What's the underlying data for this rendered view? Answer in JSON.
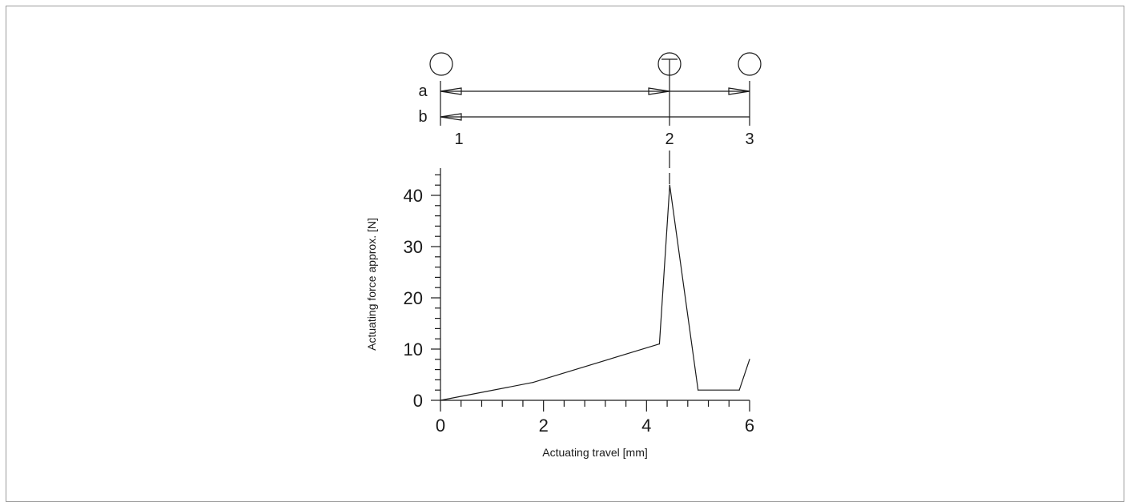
{
  "chart_data": {
    "type": "line",
    "xlabel": "Actuating travel [mm]",
    "ylabel": "Actuating force approx. [N]",
    "xlim": [
      0,
      6
    ],
    "ylim": [
      0,
      45
    ],
    "x_ticks": [
      "0",
      "2",
      "4",
      "6"
    ],
    "y_ticks": [
      "0",
      "10",
      "20",
      "30",
      "40"
    ],
    "series": [
      {
        "x": [
          0,
          1.8,
          4.25,
          4.45,
          5.0,
          5.8,
          6.0
        ],
        "y": [
          0,
          3.5,
          11,
          42,
          2,
          2,
          8
        ]
      }
    ],
    "switching_diagram": {
      "row_labels": [
        "a",
        "b"
      ],
      "position_labels": [
        "1",
        "2",
        "3"
      ],
      "positions_x": [
        0,
        4.45,
        6.0
      ]
    }
  }
}
